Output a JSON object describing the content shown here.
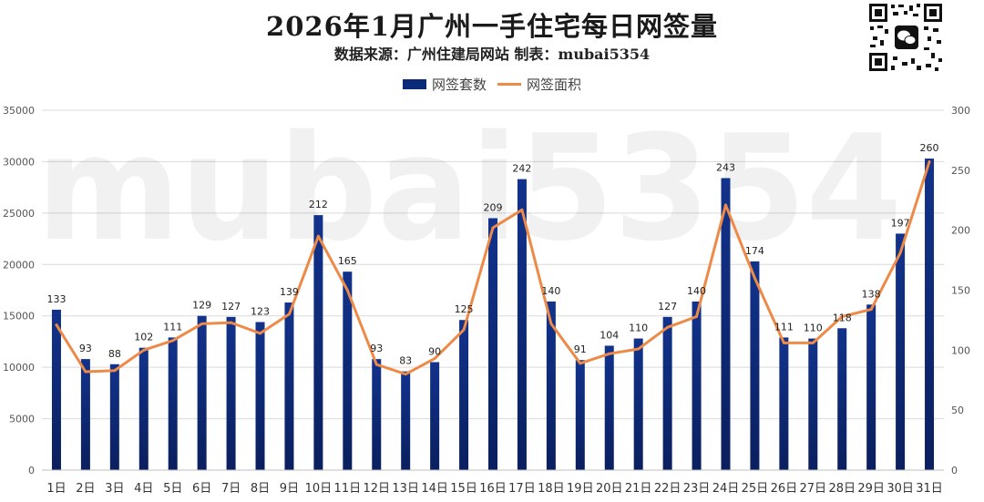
{
  "title": "2026年1月广州一手住宅每日网签量",
  "subtitle": "数据来源：广州住建局网站  制表：mubai5354",
  "watermark": "mubai5354",
  "colors": {
    "bar": "#0b2a78",
    "line": "#ee8a47",
    "grid": "#d9d9d9",
    "axis_text": "#555555"
  },
  "legend": {
    "bar_label": "网签套数",
    "line_label": "网签面积"
  },
  "chart_data": {
    "type": "bar",
    "categories": [
      "1日",
      "2日",
      "3日",
      "4日",
      "5日",
      "6日",
      "7日",
      "8日",
      "9日",
      "10日",
      "11日",
      "12日",
      "13日",
      "14日",
      "15日",
      "16日",
      "17日",
      "18日",
      "19日",
      "20日",
      "21日",
      "22日",
      "23日",
      "24日",
      "25日",
      "26日",
      "27日",
      "28日",
      "29日",
      "30日",
      "31日"
    ],
    "series": [
      {
        "name": "网签套数",
        "type": "bar",
        "axis": "left",
        "values": [
          15600,
          10800,
          10300,
          11900,
          12900,
          15000,
          14900,
          14400,
          16300,
          24800,
          19300,
          10800,
          9600,
          10500,
          14600,
          24500,
          28300,
          16400,
          10700,
          12100,
          12800,
          14900,
          16400,
          28400,
          20300,
          12900,
          12800,
          13800,
          16100,
          23000,
          30300
        ],
        "labels": [
          "133",
          "93",
          "88",
          "102",
          "111",
          "129",
          "127",
          "123",
          "139",
          "212",
          "165",
          "93",
          "83",
          "90",
          "125",
          "209",
          "242",
          "140",
          "91",
          "104",
          "110",
          "127",
          "140",
          "243",
          "174",
          "111",
          "110",
          "118",
          "138",
          "197",
          "260"
        ]
      },
      {
        "name": "网签面积",
        "type": "line",
        "axis": "right",
        "values": [
          121,
          82,
          83,
          100,
          108,
          122,
          123,
          114,
          130,
          195,
          150,
          88,
          80,
          93,
          117,
          202,
          217,
          122,
          89,
          97,
          101,
          119,
          128,
          221,
          160,
          106,
          106,
          128,
          134,
          181,
          257
        ]
      }
    ],
    "ylim_left": [
      0,
      35000
    ],
    "yticks_left": [
      "0",
      "5000",
      "10000",
      "15000",
      "20000",
      "25000",
      "30000",
      "35000"
    ],
    "ylim_right": [
      0,
      300
    ],
    "yticks_right": [
      "0",
      "50",
      "100",
      "150",
      "200",
      "250",
      "300"
    ],
    "grid": true,
    "legend_position": "top-center"
  }
}
